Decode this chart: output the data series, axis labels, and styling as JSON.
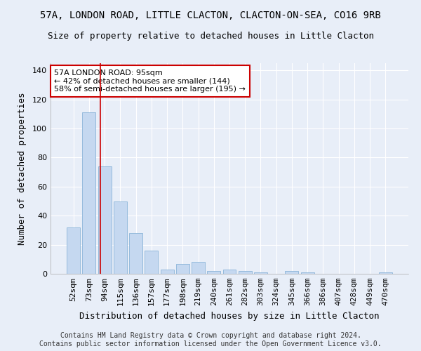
{
  "title1": "57A, LONDON ROAD, LITTLE CLACTON, CLACTON-ON-SEA, CO16 9RB",
  "title2": "Size of property relative to detached houses in Little Clacton",
  "xlabel": "Distribution of detached houses by size in Little Clacton",
  "ylabel": "Number of detached properties",
  "categories": [
    "52sqm",
    "73sqm",
    "94sqm",
    "115sqm",
    "136sqm",
    "157sqm",
    "177sqm",
    "198sqm",
    "219sqm",
    "240sqm",
    "261sqm",
    "282sqm",
    "303sqm",
    "324sqm",
    "345sqm",
    "366sqm",
    "386sqm",
    "407sqm",
    "428sqm",
    "449sqm",
    "470sqm"
  ],
  "values": [
    32,
    111,
    74,
    50,
    28,
    16,
    3,
    7,
    8,
    2,
    3,
    2,
    1,
    0,
    2,
    1,
    0,
    0,
    0,
    0,
    1
  ],
  "bar_color": "#c5d8f0",
  "bar_edge_color": "#8ab4d8",
  "vline_color": "#cc0000",
  "vline_x_index": 1.72,
  "annotation_text": "57A LONDON ROAD: 95sqm\n← 42% of detached houses are smaller (144)\n58% of semi-detached houses are larger (195) →",
  "annotation_box_color": "white",
  "annotation_box_edge_color": "#cc0000",
  "ylim": [
    0,
    145
  ],
  "yticks": [
    0,
    20,
    40,
    60,
    80,
    100,
    120,
    140
  ],
  "footnote": "Contains HM Land Registry data © Crown copyright and database right 2024.\nContains public sector information licensed under the Open Government Licence v3.0.",
  "bg_color": "#e8eef8",
  "grid_color": "#ffffff",
  "title1_fontsize": 10,
  "title2_fontsize": 9,
  "xlabel_fontsize": 9,
  "ylabel_fontsize": 9,
  "tick_fontsize": 8,
  "annotation_fontsize": 8,
  "footnote_fontsize": 7
}
